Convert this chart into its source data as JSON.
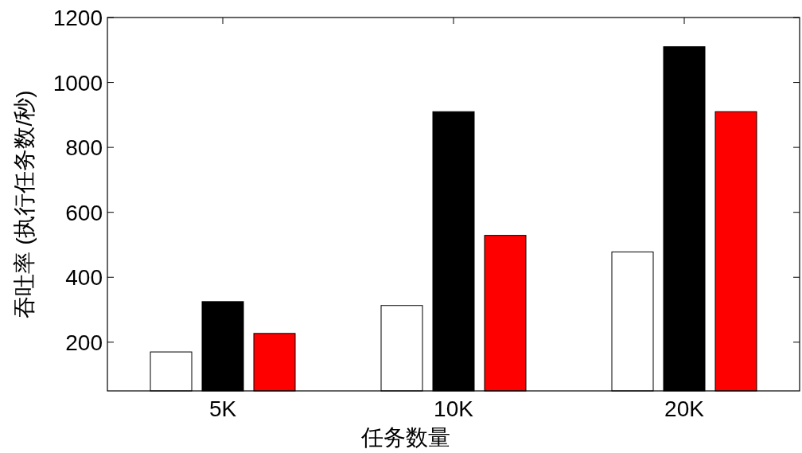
{
  "chart_data": {
    "type": "bar",
    "xlabel": "任务数量",
    "ylabel": "吞吐率 (执行任务数/秒)",
    "categories": [
      "5K",
      "10K",
      "20K"
    ],
    "series": [
      {
        "color": "#ffffff",
        "values": [
          170,
          313,
          478
        ]
      },
      {
        "color": "#000000",
        "values": [
          325,
          910,
          1110
        ]
      },
      {
        "color": "#ff0000",
        "values": [
          227,
          529,
          910
        ]
      }
    ],
    "ylim": [
      50,
      1200
    ],
    "yticks": [
      200,
      400,
      600,
      800,
      1000,
      1200
    ]
  }
}
